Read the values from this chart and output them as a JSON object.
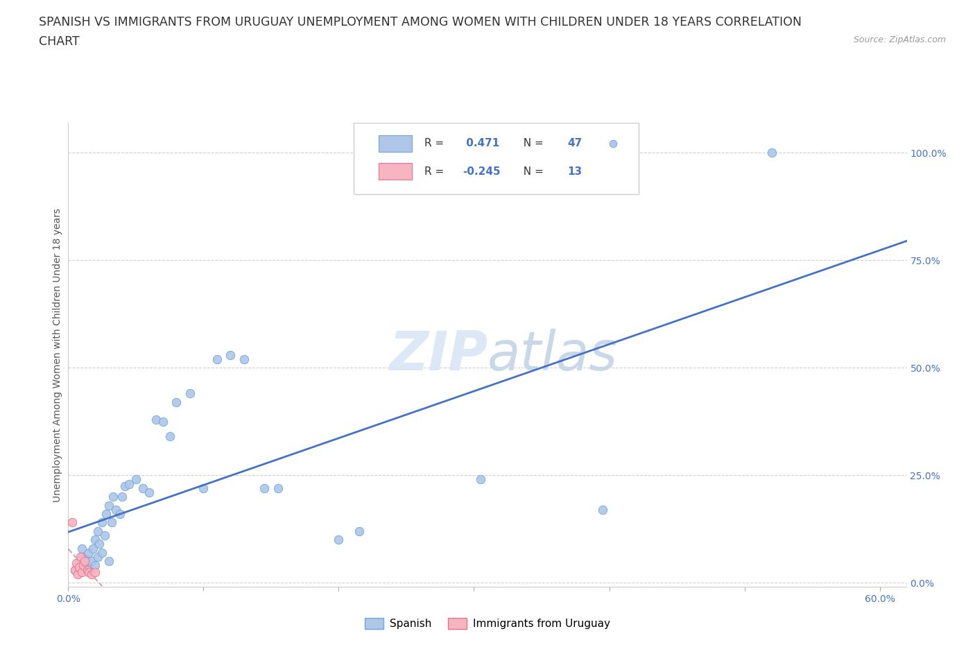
{
  "title_line1": "SPANISH VS IMMIGRANTS FROM URUGUAY UNEMPLOYMENT AMONG WOMEN WITH CHILDREN UNDER 18 YEARS CORRELATION",
  "title_line2": "CHART",
  "source": "Source: ZipAtlas.com",
  "ylabel": "Unemployment Among Women with Children Under 18 years",
  "xlim": [
    0.0,
    0.62
  ],
  "ylim": [
    -0.01,
    1.07
  ],
  "yticks": [
    0.0,
    0.25,
    0.5,
    0.75,
    1.0
  ],
  "ytick_labels": [
    "0.0%",
    "25.0%",
    "50.0%",
    "75.0%",
    "100.0%"
  ],
  "xticks": [
    0.0,
    0.1,
    0.2,
    0.3,
    0.4,
    0.5,
    0.6
  ],
  "xtick_labels": [
    "0.0%",
    "",
    "",
    "",
    "",
    "",
    "60.0%"
  ],
  "spanish_color": "#aec6e8",
  "uruguay_color": "#f8b4c0",
  "spanish_edge_color": "#6fa8d8",
  "uruguay_edge_color": "#e87090",
  "trend_spanish_color": "#4472c4",
  "trend_uruguay_color": "#d4a0b0",
  "grid_color": "#d0d0d0",
  "watermark_color": "#dce8f5",
  "R_spanish": 0.471,
  "N_spanish": 47,
  "R_uruguay": -0.245,
  "N_uruguay": 13,
  "spanish_x": [
    0.005,
    0.008,
    0.01,
    0.01,
    0.012,
    0.013,
    0.015,
    0.015,
    0.017,
    0.018,
    0.02,
    0.02,
    0.022,
    0.022,
    0.023,
    0.025,
    0.025,
    0.027,
    0.028,
    0.03,
    0.03,
    0.032,
    0.033,
    0.035,
    0.038,
    0.04,
    0.042,
    0.045,
    0.05,
    0.055,
    0.06,
    0.065,
    0.07,
    0.075,
    0.08,
    0.09,
    0.1,
    0.11,
    0.12,
    0.13,
    0.145,
    0.155,
    0.2,
    0.215,
    0.305,
    0.395,
    0.52
  ],
  "spanish_y": [
    0.03,
    0.045,
    0.06,
    0.08,
    0.035,
    0.055,
    0.03,
    0.07,
    0.05,
    0.08,
    0.04,
    0.1,
    0.06,
    0.12,
    0.09,
    0.07,
    0.14,
    0.11,
    0.16,
    0.05,
    0.18,
    0.14,
    0.2,
    0.17,
    0.16,
    0.2,
    0.225,
    0.23,
    0.24,
    0.22,
    0.21,
    0.38,
    0.375,
    0.34,
    0.42,
    0.44,
    0.22,
    0.52,
    0.53,
    0.52,
    0.22,
    0.22,
    0.1,
    0.12,
    0.24,
    0.17,
    1.0
  ],
  "uruguay_x": [
    0.003,
    0.005,
    0.006,
    0.007,
    0.008,
    0.009,
    0.01,
    0.011,
    0.012,
    0.014,
    0.015,
    0.017,
    0.02
  ],
  "uruguay_y": [
    0.14,
    0.03,
    0.045,
    0.02,
    0.035,
    0.06,
    0.025,
    0.04,
    0.05,
    0.03,
    0.025,
    0.02,
    0.025
  ],
  "background_color": "#ffffff",
  "title_fontsize": 12.5,
  "axis_label_fontsize": 10,
  "tick_label_fontsize": 10,
  "tick_color": "#4472c4",
  "marker_size": 80
}
